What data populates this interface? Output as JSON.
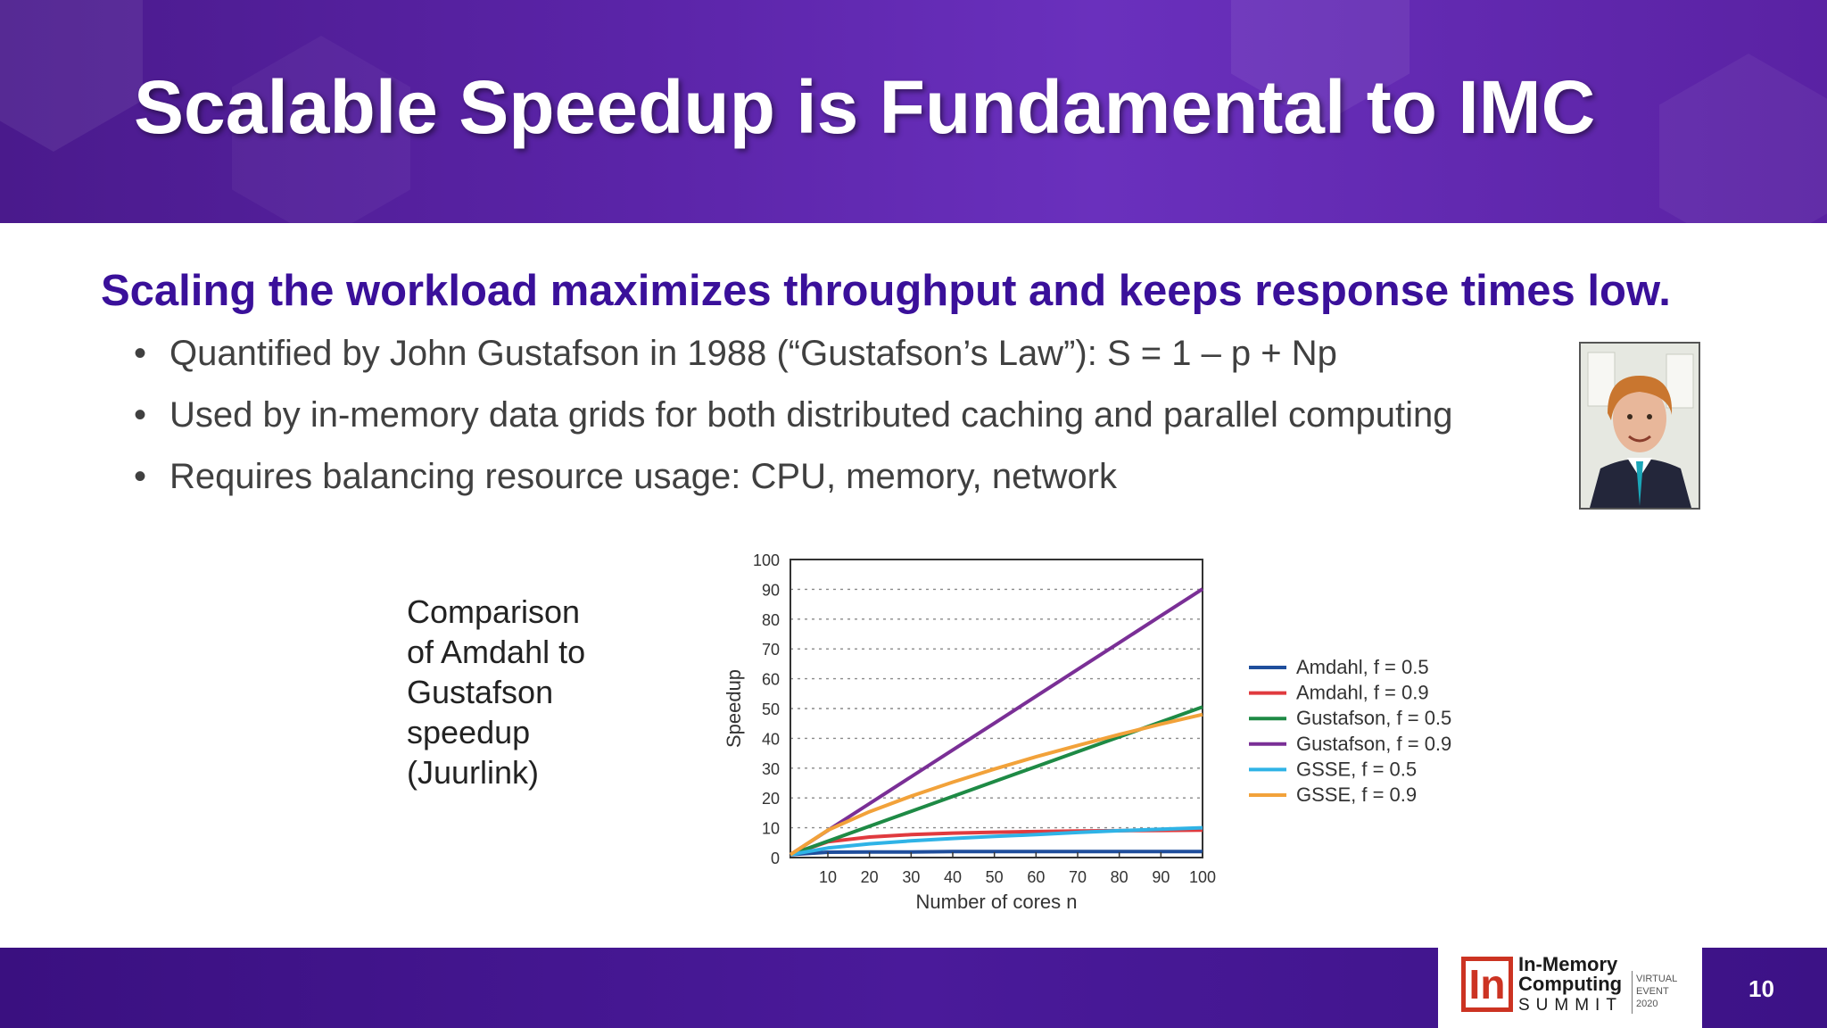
{
  "slide": {
    "title": "Scalable Speedup is Fundamental to IMC",
    "subtitle": "Scaling the workload maximizes throughput and keeps response times low.",
    "bullets": [
      "Quantified by John Gustafson in 1988 (“Gustafson’s Law”): S = 1 – p + Np",
      "Used by in-memory data grids for both distributed caching and parallel computing",
      "Requires balancing resource usage: CPU, memory, network"
    ],
    "caption_lines": [
      "Comparison",
      "of Amdahl to",
      "Gustafson",
      "speedup",
      "(Juurlink)"
    ],
    "page_number": "10"
  },
  "logo": {
    "line1": "In-Memory",
    "line2": "Computing",
    "line3": "SUMMIT",
    "mark": "In",
    "event_lines": [
      "VIRTUAL",
      "EVENT",
      "2020"
    ]
  },
  "colors": {
    "header_purple": "#5b24a8",
    "subtitle_purple": "#3a109a",
    "logo_red": "#cc3322"
  },
  "chart_data": {
    "type": "line",
    "xlabel": "Number of cores n",
    "ylabel": "Speedup",
    "xlim": [
      1,
      100
    ],
    "ylim": [
      0,
      100
    ],
    "x_ticks": [
      10,
      20,
      30,
      40,
      50,
      60,
      70,
      80,
      90,
      100
    ],
    "y_ticks": [
      0,
      10,
      20,
      30,
      40,
      50,
      60,
      70,
      80,
      90,
      100
    ],
    "grid": "horizontal-dashed",
    "legend_position": "right",
    "x": [
      1,
      10,
      20,
      30,
      40,
      50,
      60,
      70,
      80,
      90,
      100
    ],
    "series": [
      {
        "name": "Amdahl, f = 0.5",
        "color": "#1f4e9c",
        "values": [
          1,
          1.8,
          1.9,
          1.9,
          2.0,
          2.0,
          2.0,
          2.0,
          2.0,
          2.0,
          2.0
        ]
      },
      {
        "name": "Amdahl, f = 0.9",
        "color": "#e03a3e",
        "values": [
          1,
          5.3,
          6.9,
          7.7,
          8.2,
          8.5,
          8.7,
          8.9,
          9.0,
          9.1,
          9.2
        ]
      },
      {
        "name": "Gustafson, f = 0.5",
        "color": "#1e8a45",
        "values": [
          1,
          5.5,
          10.5,
          15.5,
          20.5,
          25.5,
          30.5,
          35.5,
          40.5,
          45.5,
          50.5
        ]
      },
      {
        "name": "Gustafson, f = 0.9",
        "color": "#7a2f96",
        "values": [
          1,
          9.1,
          18.1,
          27.1,
          36.1,
          45.1,
          54.1,
          63.1,
          72.1,
          81.1,
          90.1
        ]
      },
      {
        "name": "GSSE, f = 0.5",
        "color": "#2fb3e6",
        "values": [
          1,
          3.2,
          4.6,
          5.6,
          6.4,
          7.1,
          7.7,
          8.4,
          9.0,
          9.5,
          10.0
        ]
      },
      {
        "name": "GSSE, f = 0.9",
        "color": "#f2a23a",
        "values": [
          1,
          9.2,
          15.4,
          20.6,
          25.3,
          29.7,
          33.8,
          37.6,
          41.3,
          44.8,
          48.0
        ]
      }
    ]
  }
}
